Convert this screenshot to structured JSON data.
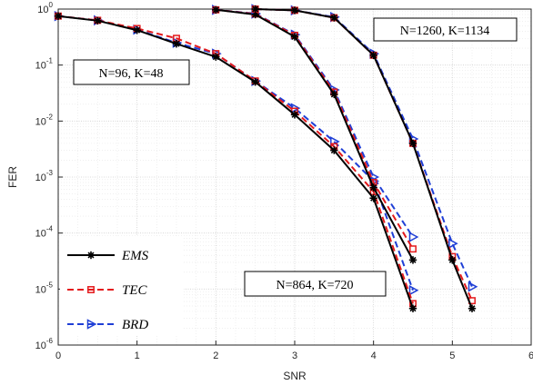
{
  "chart_data": {
    "type": "line",
    "title": "",
    "xlabel": "SNR",
    "ylabel": "FER",
    "xlim": [
      0,
      6
    ],
    "ylim": [
      1e-06,
      1
    ],
    "yscale": "log",
    "grid": true,
    "x_ticks": [
      0,
      1,
      2,
      3,
      4,
      5,
      6
    ],
    "y_ticks": [
      {
        "base": "10",
        "exp": "0",
        "value": 1
      },
      {
        "base": "10",
        "exp": "-1",
        "value": 0.1
      },
      {
        "base": "10",
        "exp": "-2",
        "value": 0.01
      },
      {
        "base": "10",
        "exp": "-3",
        "value": 0.001
      },
      {
        "base": "10",
        "exp": "-4",
        "value": 0.0001
      },
      {
        "base": "10",
        "exp": "-5",
        "value": 1e-05
      },
      {
        "base": "10",
        "exp": "-6",
        "value": 1e-06
      }
    ],
    "legend_placement": "bottom-left",
    "legend": [
      {
        "label": "EMS",
        "color": "#000000",
        "dash": "solid",
        "marker": "asterisk"
      },
      {
        "label": "TEC",
        "color": "#e41a1c",
        "dash": "dashed",
        "marker": "square"
      },
      {
        "label": "BRD",
        "color": "#1f3fd6",
        "dash": "dashed",
        "marker": "triangle-right"
      }
    ],
    "annotations": [
      "N=96, K=48",
      "N=864, K=720",
      "N=1260, K=1134"
    ],
    "groups": [
      {
        "annotation": "N=96, K=48",
        "series": [
          {
            "name": "EMS",
            "x": [
              0,
              0.5,
              1,
              1.5,
              2,
              2.5,
              3,
              3.5,
              4,
              4.5
            ],
            "y": [
              0.75,
              0.62,
              0.42,
              0.24,
              0.14,
              0.05,
              0.013,
              0.003,
              0.00042,
              4.5e-06
            ]
          },
          {
            "name": "TEC",
            "x": [
              0,
              0.5,
              1,
              1.5,
              2,
              2.5,
              3,
              3.5,
              4,
              4.5
            ],
            "y": [
              0.75,
              0.63,
              0.45,
              0.3,
              0.16,
              0.052,
              0.015,
              0.0035,
              0.00055,
              5.5e-06
            ]
          },
          {
            "name": "BRD",
            "x": [
              0,
              0.5,
              1,
              1.5,
              2,
              2.5,
              3,
              3.5,
              4,
              4.5
            ],
            "y": [
              0.75,
              0.63,
              0.43,
              0.25,
              0.16,
              0.052,
              0.017,
              0.0043,
              0.00085,
              9.5e-06
            ]
          }
        ]
      },
      {
        "annotation": "N=864, K=720",
        "series": [
          {
            "name": "EMS",
            "x": [
              2,
              2.5,
              3,
              3.5,
              4,
              4.5
            ],
            "y": [
              0.97,
              0.8,
              0.32,
              0.03,
              0.00065,
              3.3e-05
            ]
          },
          {
            "name": "TEC",
            "x": [
              2,
              2.5,
              3,
              3.5,
              4,
              4.5
            ],
            "y": [
              0.97,
              0.82,
              0.34,
              0.033,
              0.0008,
              5.2e-05
            ]
          },
          {
            "name": "BRD",
            "x": [
              2,
              2.5,
              3,
              3.5,
              4,
              4.5
            ],
            "y": [
              0.97,
              0.83,
              0.35,
              0.036,
              0.001,
              8.5e-05
            ]
          }
        ]
      },
      {
        "annotation": "N=1260, K=1134",
        "series": [
          {
            "name": "EMS",
            "x": [
              2.5,
              3,
              3.5,
              4,
              4.5,
              5,
              5.25
            ],
            "y": [
              1,
              0.95,
              0.7,
              0.15,
              0.004,
              3.3e-05,
              4.5e-06
            ]
          },
          {
            "name": "TEC",
            "x": [
              2.5,
              3,
              3.5,
              4,
              4.5,
              5,
              5.25
            ],
            "y": [
              1,
              0.95,
              0.7,
              0.15,
              0.004,
              3.8e-05,
              6.2e-06
            ]
          },
          {
            "name": "BRD",
            "x": [
              2.5,
              3,
              3.5,
              4,
              4.5,
              5,
              5.25
            ],
            "y": [
              1,
              0.95,
              0.72,
              0.16,
              0.0048,
              6.5e-05,
              1.1e-05
            ]
          }
        ]
      }
    ]
  }
}
